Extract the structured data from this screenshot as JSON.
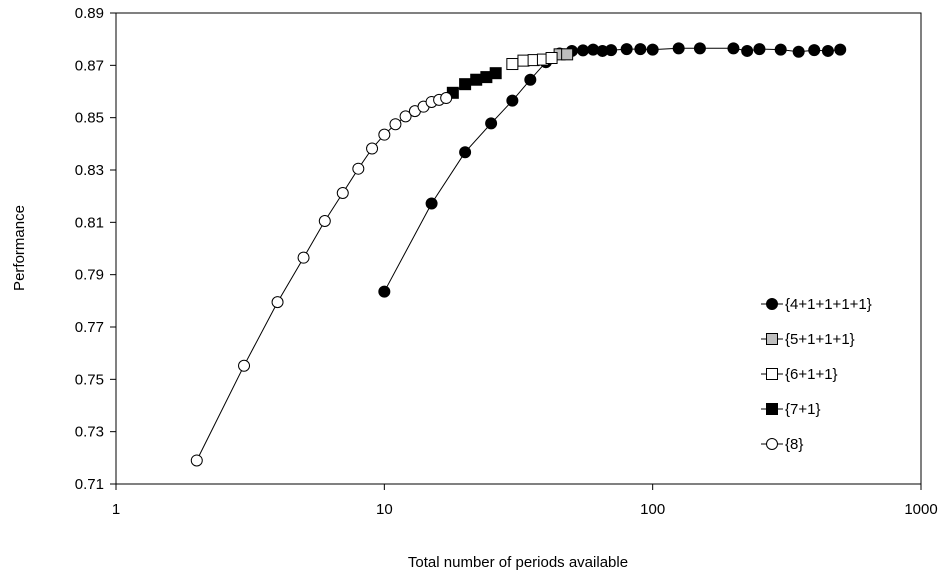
{
  "chart_data": {
    "type": "scatter",
    "title": "",
    "xlabel": "Total number of periods available",
    "ylabel": "Performance",
    "xscale": "log",
    "xlim": [
      1,
      1000
    ],
    "ylim": [
      0.71,
      0.89
    ],
    "xticks": [
      1,
      10,
      100,
      1000
    ],
    "xtick_labels": [
      "1",
      "10",
      "100",
      "1000"
    ],
    "yticks": [
      0.71,
      0.73,
      0.75,
      0.77,
      0.79,
      0.81,
      0.83,
      0.85,
      0.87,
      0.89
    ],
    "ytick_labels": [
      "0.71",
      "0.73",
      "0.75",
      "0.77",
      "0.79",
      "0.81",
      "0.83",
      "0.85",
      "0.87",
      "0.89"
    ],
    "grid": false,
    "legend_position": "right",
    "series": [
      {
        "name": "{4+1+1+1+1}",
        "marker": "circle",
        "fill": "#000000",
        "x": [
          10,
          15,
          20,
          25,
          30,
          35,
          40,
          45,
          50,
          55,
          60,
          65,
          70,
          80,
          90,
          100,
          125,
          150,
          200,
          225,
          250,
          300,
          350,
          400,
          450,
          500
        ],
        "y": [
          0.7835,
          0.8172,
          0.8368,
          0.8478,
          0.8565,
          0.8645,
          0.8712,
          0.8745,
          0.8755,
          0.8757,
          0.876,
          0.8755,
          0.8758,
          0.8762,
          0.8762,
          0.876,
          0.8765,
          0.8765,
          0.8765,
          0.8755,
          0.8762,
          0.876,
          0.8752,
          0.8758,
          0.8755,
          0.876
        ]
      },
      {
        "name": "{5+1+1+1}",
        "marker": "square",
        "fill": "#bfbfbf",
        "x": [
          45,
          48
        ],
        "y": [
          0.8742,
          0.8742
        ]
      },
      {
        "name": "{6+1+1}",
        "marker": "square",
        "fill": "#ffffff",
        "x": [
          30,
          33,
          36,
          39,
          42
        ],
        "y": [
          0.8705,
          0.8718,
          0.872,
          0.8722,
          0.8728
        ]
      },
      {
        "name": "{7+1}",
        "marker": "square",
        "fill": "#000000",
        "x": [
          18,
          20,
          22,
          24,
          26
        ],
        "y": [
          0.8595,
          0.8628,
          0.8645,
          0.8655,
          0.867
        ]
      },
      {
        "name": "{8}",
        "marker": "circle",
        "fill": "#ffffff",
        "x": [
          2,
          3,
          4,
          5,
          6,
          7,
          8,
          9,
          10,
          11,
          12,
          13,
          14,
          15,
          16,
          17
        ],
        "y": [
          0.719,
          0.7552,
          0.7795,
          0.7965,
          0.8105,
          0.8212,
          0.8305,
          0.8382,
          0.8435,
          0.8475,
          0.8505,
          0.8525,
          0.8542,
          0.856,
          0.8568,
          0.8575
        ]
      }
    ]
  }
}
